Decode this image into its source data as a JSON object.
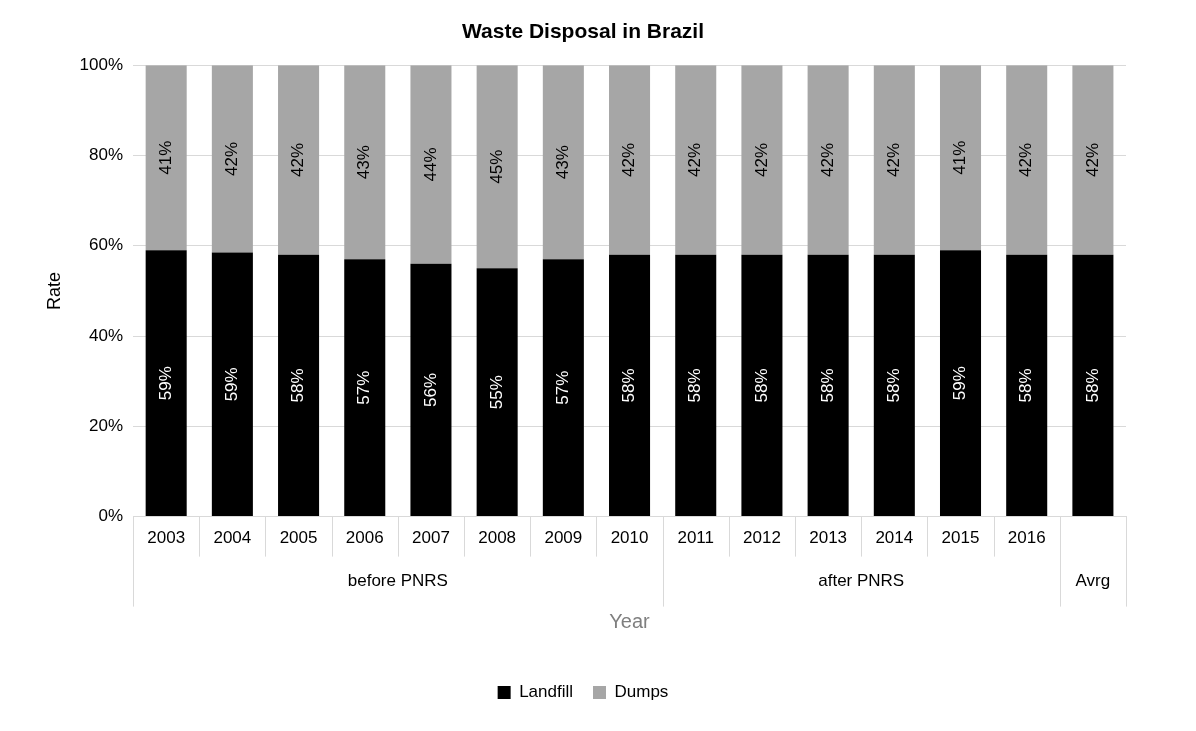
{
  "chart_data": {
    "type": "bar",
    "title": "Waste Disposal in Brazil",
    "xlabel": "Year",
    "ylabel": "Rate",
    "categories": [
      "2003",
      "2004",
      "2005",
      "2006",
      "2007",
      "2008",
      "2009",
      "2010",
      "2011",
      "2012",
      "2013",
      "2014",
      "2015",
      "2016",
      null
    ],
    "annotations": [
      "before PNRS",
      "after PNRS",
      "Avrg"
    ],
    "stacked": true,
    "series": [
      {
        "name": "Landfill",
        "color": "#000000",
        "values": [
          59,
          58.5,
          58,
          57,
          56,
          55,
          57,
          58,
          58,
          58,
          58,
          58,
          59,
          58,
          58
        ],
        "value_labels": [
          "59%",
          "59%",
          "58%",
          "57%",
          "56%",
          "55%",
          "57%",
          "58%",
          "58%",
          "58%",
          "58%",
          "58%",
          "59%",
          "58%",
          "58%"
        ]
      },
      {
        "name": "Dumps",
        "color": "#a6a6a6",
        "values": [
          41,
          41.5,
          42,
          43,
          44,
          45,
          43,
          42,
          42,
          42,
          42,
          42,
          41,
          42,
          42
        ],
        "value_labels": [
          "41%",
          "42%",
          "42%",
          "43%",
          "44%",
          "45%",
          "43%",
          "42%",
          "42%",
          "42%",
          "42%",
          "42%",
          "41%",
          "42%",
          "42%"
        ]
      }
    ],
    "ylim": [
      0,
      100
    ],
    "yticks": [
      {
        "value": 0,
        "label": "0%"
      },
      {
        "value": 20,
        "label": "20%"
      },
      {
        "value": 40,
        "label": "40%"
      },
      {
        "value": 60,
        "label": "60%"
      },
      {
        "value": 80,
        "label": "80%"
      },
      {
        "value": 100,
        "label": "100%"
      }
    ],
    "grid": "y",
    "legend": "bottom"
  }
}
